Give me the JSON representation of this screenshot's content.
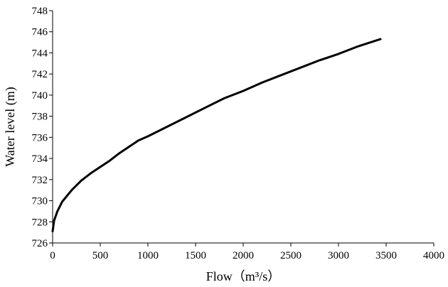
{
  "chart_data": {
    "type": "line",
    "title": "",
    "xlabel": "Flow（m³/s）",
    "ylabel": "Water level (m)",
    "xlim": [
      0,
      4000
    ],
    "ylim": [
      726,
      748
    ],
    "xticks": [
      0,
      500,
      1000,
      1500,
      2000,
      2500,
      3000,
      3500,
      4000
    ],
    "yticks": [
      726,
      728,
      730,
      732,
      734,
      736,
      738,
      740,
      742,
      744,
      746,
      748
    ],
    "grid": false,
    "legend": "none",
    "line_color": "#000000",
    "series": [
      {
        "x": [
          0,
          15,
          50,
          100,
          200,
          300,
          400,
          500,
          600,
          700,
          800,
          900,
          1000,
          1200,
          1400,
          1600,
          1800,
          2000,
          2200,
          2400,
          2600,
          2800,
          3000,
          3200,
          3440
        ],
        "y": [
          727.1,
          728.1,
          729.0,
          729.9,
          731.0,
          731.9,
          732.6,
          733.2,
          733.8,
          734.5,
          735.1,
          735.7,
          736.1,
          737.0,
          737.9,
          738.8,
          739.7,
          740.4,
          741.2,
          741.9,
          742.6,
          743.3,
          743.9,
          744.6,
          745.3
        ]
      }
    ]
  }
}
